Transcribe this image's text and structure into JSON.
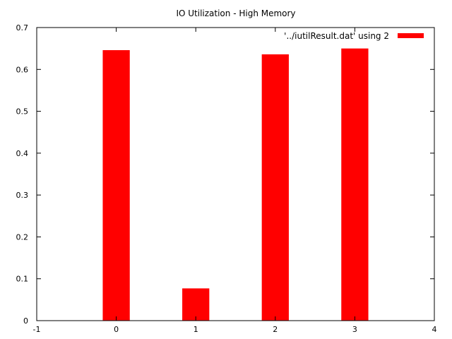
{
  "chart_data": {
    "type": "bar",
    "title": "IO Utilization - High Memory",
    "xlabel": "",
    "ylabel": "",
    "x": [
      0,
      1,
      2,
      3
    ],
    "series": [
      {
        "name": "'../iutilResult.dat' using 2",
        "values": [
          0.646,
          0.077,
          0.636,
          0.65
        ]
      }
    ],
    "xlim": [
      -1,
      4
    ],
    "ylim": [
      0,
      0.7
    ],
    "xticks": [
      "-1",
      "0",
      "1",
      "2",
      "3",
      "4"
    ],
    "yticks": [
      "0",
      "0.1",
      "0.2",
      "0.3",
      "0.4",
      "0.5",
      "0.6",
      "0.7"
    ],
    "grid": false,
    "legend_position": "top-right",
    "bar_color": "#ff0000"
  }
}
